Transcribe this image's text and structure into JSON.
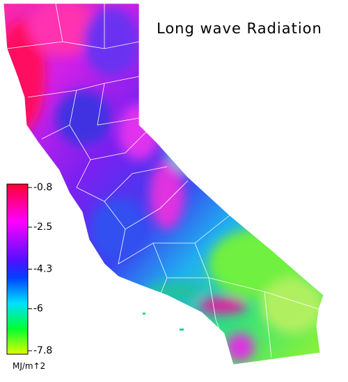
{
  "title": "Long wave Radiation",
  "colorbar": {
    "lim": [
      -7.8,
      -0.8
    ],
    "ticks": [
      -0.8,
      -2.5,
      -4.3,
      -6.0,
      -7.8
    ],
    "unit": "MJ/m↑2"
  }
}
